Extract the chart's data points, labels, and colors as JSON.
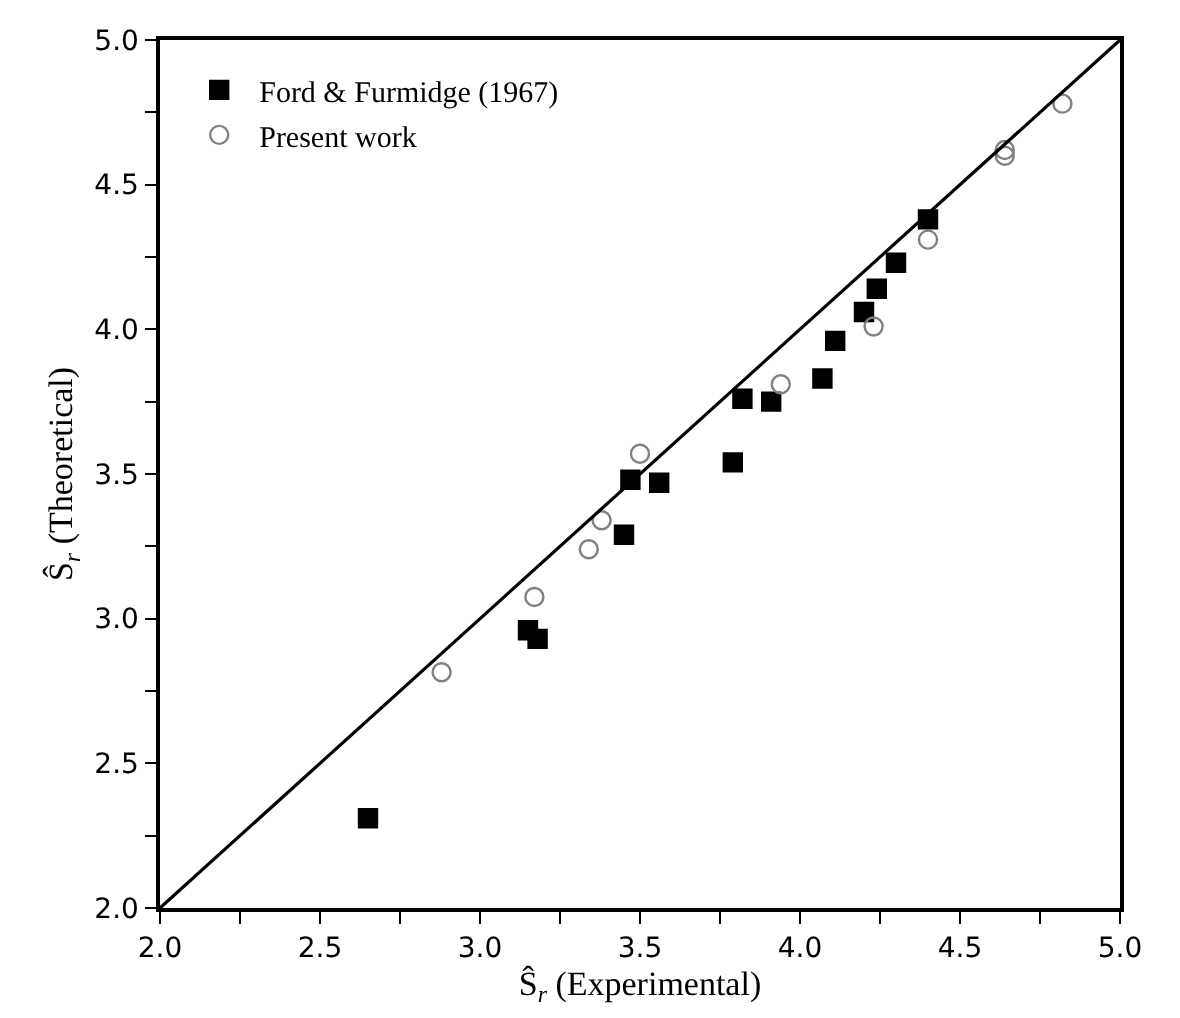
{
  "chart_data": {
    "type": "scatter",
    "xlabel": "Ŝ$_{r}$ (Experimental)",
    "ylabel": "Ŝ$_{r}$ (Theoretical)",
    "xlim": [
      2.0,
      5.0
    ],
    "ylim": [
      2.0,
      5.0
    ],
    "xticks": [
      {
        "value": 2.0,
        "label": "2.0"
      },
      {
        "value": 2.25,
        "label": null
      },
      {
        "value": 2.5,
        "label": "2.5"
      },
      {
        "value": 2.75,
        "label": null
      },
      {
        "value": 3.0,
        "label": "3.0"
      },
      {
        "value": 3.25,
        "label": null
      },
      {
        "value": 3.5,
        "label": "3.5"
      },
      {
        "value": 3.75,
        "label": null
      },
      {
        "value": 4.0,
        "label": "4.0"
      },
      {
        "value": 4.25,
        "label": null
      },
      {
        "value": 4.5,
        "label": "4.5"
      },
      {
        "value": 4.75,
        "label": null
      },
      {
        "value": 5.0,
        "label": "5.0"
      }
    ],
    "yticks": [
      {
        "value": 2.0,
        "label": "2.0"
      },
      {
        "value": 2.25,
        "label": null
      },
      {
        "value": 2.5,
        "label": "2.5"
      },
      {
        "value": 2.75,
        "label": null
      },
      {
        "value": 3.0,
        "label": "3.0"
      },
      {
        "value": 3.25,
        "label": null
      },
      {
        "value": 3.5,
        "label": "3.5"
      },
      {
        "value": 3.75,
        "label": null
      },
      {
        "value": 4.0,
        "label": "4.0"
      },
      {
        "value": 4.25,
        "label": null
      },
      {
        "value": 4.5,
        "label": "4.5"
      },
      {
        "value": 4.75,
        "label": null
      },
      {
        "value": 5.0,
        "label": "5.0"
      }
    ],
    "legend": "top left",
    "series": [
      {
        "name": "Ford & Furmidge (1967)",
        "color": "#000000",
        "marker": "square",
        "x": [
          2.65,
          3.15,
          3.18,
          3.45,
          3.47,
          3.56,
          3.79,
          3.82,
          3.91,
          4.07,
          4.11,
          4.2,
          4.24,
          4.3,
          4.4
        ],
        "values": [
          2.31,
          2.96,
          2.93,
          3.29,
          3.48,
          3.47,
          3.54,
          3.76,
          3.75,
          3.83,
          3.96,
          4.06,
          4.14,
          4.23,
          4.38
        ]
      },
      {
        "name": "Present work",
        "color": "#808080",
        "marker": "circle-open",
        "x": [
          2.88,
          3.17,
          3.34,
          3.38,
          3.5,
          3.94,
          4.23,
          4.4,
          4.64,
          4.64,
          4.82
        ],
        "values": [
          2.815,
          3.075,
          3.24,
          3.34,
          3.57,
          3.81,
          4.01,
          4.31,
          4.6,
          4.62,
          4.78
        ]
      },
      {
        "type": "line",
        "color": "#000000",
        "marker": "none",
        "x": [
          2.0,
          5.0
        ],
        "values": [
          2.0,
          5.0
        ]
      }
    ]
  }
}
